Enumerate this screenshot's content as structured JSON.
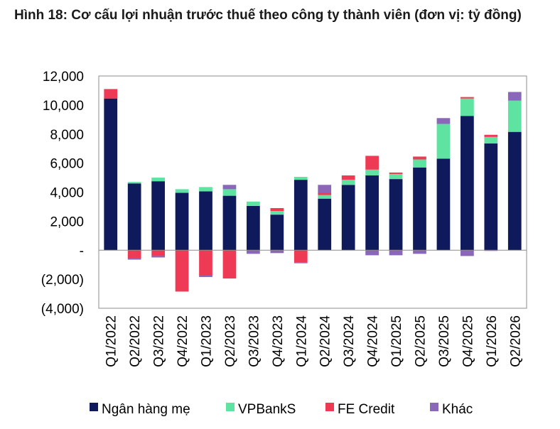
{
  "title": "Hình 18: Cơ cấu lợi nhuận trước thuế theo công ty thành viên (đơn vị: tỷ đồng)",
  "colors": {
    "Ngân hàng mẹ": "#0e1a5c",
    "VPBankS": "#5ee3a1",
    "FE Credit": "#ee3a55",
    "Khác": "#8a67b8"
  },
  "chart_data": {
    "type": "bar",
    "stacked": true,
    "title": "Hình 18: Cơ cấu lợi nhuận trước thuế theo công ty thành viên (đơn vị: tỷ đồng)",
    "xlabel": "",
    "ylabel": "",
    "ylim": [
      -4000,
      12000
    ],
    "yticks": [
      12000,
      10000,
      8000,
      6000,
      4000,
      2000,
      0,
      -2000,
      -4000
    ],
    "ytick_labels": [
      "12,000",
      "10,000",
      "8,000",
      "6,000",
      "4,000",
      "2,000",
      "-",
      "(2,000)",
      "(4,000)"
    ],
    "grid": false,
    "legend_position": "bottom",
    "categories": [
      "Q1/2022",
      "Q2/2022",
      "Q3/2022",
      "Q4/2022",
      "Q1/2023",
      "Q2/2023",
      "Q3/2023",
      "Q4/2023",
      "Q1/2024",
      "Q2/2024",
      "Q3/2024",
      "Q4/2024",
      "Q1/2025",
      "Q2/2025",
      "Q3/2025",
      "Q4/2025",
      "Q1/2026",
      "Q2/2026"
    ],
    "series": [
      {
        "name": "Ngân hàng mẹ",
        "values": [
          10450,
          4600,
          4750,
          3950,
          4050,
          3750,
          3050,
          2450,
          4850,
          3550,
          4500,
          5150,
          4900,
          5700,
          6300,
          9250,
          7350,
          8150
        ]
      },
      {
        "name": "VPBankS",
        "values": [
          0,
          100,
          250,
          250,
          300,
          450,
          300,
          250,
          200,
          250,
          350,
          400,
          350,
          550,
          2400,
          1200,
          450,
          2150
        ]
      },
      {
        "name": "FE Credit",
        "values": [
          650,
          -550,
          -400,
          -2850,
          -1750,
          -1950,
          0,
          200,
          -850,
          150,
          300,
          950,
          100,
          200,
          0,
          100,
          150,
          0
        ]
      },
      {
        "name": "Khác",
        "values": [
          0,
          -100,
          -100,
          0,
          -100,
          300,
          -250,
          -200,
          -50,
          550,
          0,
          -350,
          -350,
          -250,
          400,
          -400,
          -50,
          600
        ]
      }
    ]
  }
}
